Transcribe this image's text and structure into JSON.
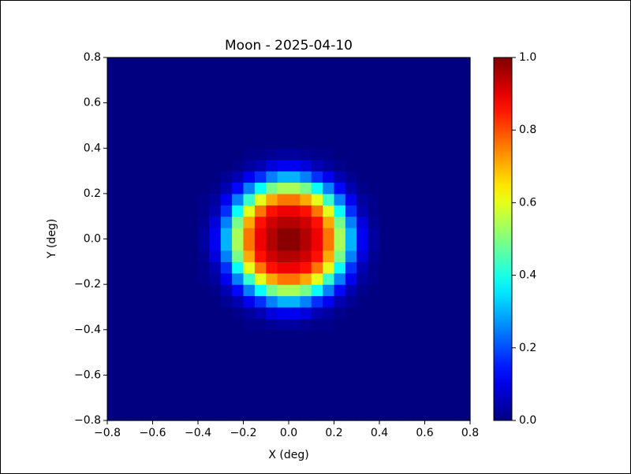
{
  "chart_data": {
    "type": "heatmap",
    "title": "Moon - 2025-04-10",
    "xlabel": "X (deg)",
    "ylabel": "Y (deg)",
    "colormap": "jet",
    "xlim": [
      -0.8,
      0.8
    ],
    "ylim": [
      -0.8,
      0.8
    ],
    "xticks": [
      {
        "value": -0.8,
        "label": "−0.8"
      },
      {
        "value": -0.6,
        "label": "−0.6"
      },
      {
        "value": -0.4,
        "label": "−0.4"
      },
      {
        "value": -0.2,
        "label": "−0.2"
      },
      {
        "value": 0,
        "label": "0.0"
      },
      0.2,
      0.4,
      0.6,
      0.8
    ],
    "yticks": [
      {
        "value": -0.8,
        "label": "−0.8"
      },
      {
        "value": -0.6,
        "label": "−0.6"
      },
      {
        "value": -0.4,
        "label": "−0.4"
      },
      {
        "value": -0.2,
        "label": "−0.2"
      },
      {
        "value": 0,
        "label": "0.0"
      },
      0.2,
      0.4,
      0.6,
      0.8
    ],
    "clim": [
      0,
      1
    ],
    "cticks": [
      {
        "value": 0,
        "label": "0.0"
      },
      0.2,
      0.4,
      0.6,
      0.8,
      {
        "value": 1,
        "label": "1.0"
      }
    ],
    "z": [
      [
        0,
        0,
        0,
        0,
        0,
        0,
        0,
        0,
        0,
        0,
        0,
        0,
        0,
        0,
        0,
        0,
        0,
        0,
        0,
        0,
        0,
        0,
        0,
        0,
        0,
        0,
        0,
        0,
        0,
        0,
        0,
        0
      ],
      [
        0,
        0,
        0,
        0,
        0,
        0,
        0,
        0,
        0,
        0,
        0,
        0,
        0,
        0,
        0,
        0,
        0,
        0,
        0,
        0,
        0,
        0,
        0,
        0,
        0,
        0,
        0,
        0,
        0,
        0,
        0,
        0
      ],
      [
        0,
        0,
        0,
        0,
        0,
        0,
        0,
        0,
        0,
        0,
        0,
        0,
        0,
        0,
        0,
        0,
        0,
        0,
        0,
        0,
        0,
        0,
        0,
        0,
        0,
        0,
        0,
        0,
        0,
        0,
        0,
        0
      ],
      [
        0,
        0,
        0,
        0,
        0,
        0,
        0,
        0,
        0,
        0,
        0,
        0,
        0,
        0,
        0,
        0,
        0,
        0,
        0,
        0,
        0,
        0,
        0,
        0,
        0,
        0,
        0,
        0,
        0,
        0,
        0,
        0
      ],
      [
        0,
        0,
        0,
        0,
        0,
        0,
        0,
        0,
        0,
        0,
        0,
        0,
        0,
        0,
        0,
        0,
        0,
        0,
        0,
        0,
        0,
        0,
        0,
        0,
        0,
        0,
        0,
        0,
        0,
        0,
        0,
        0
      ],
      [
        0,
        0,
        0,
        0,
        0,
        0,
        0,
        0,
        0,
        0,
        0,
        0,
        0,
        0,
        0,
        0,
        0,
        0,
        0,
        0,
        0,
        0,
        0,
        0,
        0,
        0,
        0,
        0,
        0,
        0,
        0,
        0
      ],
      [
        0,
        0,
        0,
        0,
        0,
        0,
        0,
        0,
        0,
        0,
        0,
        0,
        0,
        0,
        0,
        0,
        0,
        0,
        0,
        0,
        0,
        0,
        0,
        0,
        0,
        0,
        0,
        0,
        0,
        0,
        0,
        0
      ],
      [
        0,
        0,
        0,
        0,
        0,
        0,
        0,
        0,
        0,
        0,
        0,
        0,
        0,
        0,
        0,
        0,
        0,
        0,
        0,
        0,
        0,
        0,
        0,
        0,
        0,
        0,
        0,
        0,
        0,
        0,
        0,
        0
      ],
      [
        0,
        0,
        0,
        0,
        0,
        0,
        0,
        0,
        0,
        0,
        0,
        0,
        0.01,
        0.01,
        0.02,
        0.03,
        0.03,
        0.02,
        0.01,
        0.01,
        0,
        0,
        0,
        0,
        0,
        0,
        0,
        0,
        0,
        0,
        0,
        0
      ],
      [
        0,
        0,
        0,
        0,
        0,
        0,
        0,
        0,
        0,
        0,
        0,
        0.01,
        0.03,
        0.05,
        0.09,
        0.11,
        0.11,
        0.09,
        0.05,
        0.03,
        0.01,
        0,
        0,
        0,
        0,
        0,
        0,
        0,
        0,
        0,
        0,
        0
      ],
      [
        0,
        0,
        0,
        0,
        0,
        0,
        0,
        0,
        0,
        0,
        0.02,
        0.05,
        0.11,
        0.17,
        0.25,
        0.3,
        0.3,
        0.25,
        0.17,
        0.11,
        0.05,
        0.02,
        0,
        0,
        0,
        0,
        0,
        0,
        0,
        0,
        0,
        0
      ],
      [
        0,
        0,
        0,
        0,
        0,
        0,
        0,
        0,
        0,
        0.01,
        0.05,
        0.13,
        0.25,
        0.38,
        0.49,
        0.54,
        0.54,
        0.49,
        0.38,
        0.25,
        0.13,
        0.05,
        0.01,
        0,
        0,
        0,
        0,
        0,
        0,
        0,
        0,
        0
      ],
      [
        0,
        0,
        0,
        0,
        0,
        0,
        0,
        0,
        0.01,
        0.03,
        0.11,
        0.25,
        0.43,
        0.6,
        0.71,
        0.76,
        0.76,
        0.71,
        0.6,
        0.43,
        0.25,
        0.11,
        0.03,
        0.01,
        0,
        0,
        0,
        0,
        0,
        0,
        0,
        0
      ],
      [
        0,
        0,
        0,
        0,
        0,
        0,
        0,
        0,
        0.01,
        0.05,
        0.17,
        0.38,
        0.6,
        0.76,
        0.86,
        0.89,
        0.89,
        0.86,
        0.76,
        0.6,
        0.38,
        0.17,
        0.05,
        0.01,
        0,
        0,
        0,
        0,
        0,
        0,
        0,
        0
      ],
      [
        0,
        0,
        0,
        0,
        0,
        0,
        0,
        0,
        0.02,
        0.09,
        0.25,
        0.49,
        0.71,
        0.86,
        0.92,
        0.95,
        0.95,
        0.92,
        0.86,
        0.71,
        0.49,
        0.25,
        0.09,
        0.02,
        0,
        0,
        0,
        0,
        0,
        0,
        0,
        0
      ],
      [
        0,
        0,
        0,
        0,
        0,
        0,
        0,
        0,
        0.03,
        0.11,
        0.3,
        0.54,
        0.76,
        0.89,
        0.95,
        0.99,
        0.99,
        0.95,
        0.89,
        0.76,
        0.54,
        0.3,
        0.11,
        0.03,
        0,
        0,
        0,
        0,
        0,
        0,
        0,
        0
      ],
      [
        0,
        0,
        0,
        0,
        0,
        0,
        0,
        0,
        0.03,
        0.11,
        0.3,
        0.54,
        0.76,
        0.89,
        0.95,
        0.99,
        0.99,
        0.95,
        0.89,
        0.76,
        0.54,
        0.3,
        0.11,
        0.03,
        0,
        0,
        0,
        0,
        0,
        0,
        0,
        0
      ],
      [
        0,
        0,
        0,
        0,
        0,
        0,
        0,
        0,
        0.02,
        0.09,
        0.25,
        0.49,
        0.71,
        0.86,
        0.92,
        0.95,
        0.95,
        0.92,
        0.86,
        0.71,
        0.49,
        0.25,
        0.09,
        0.02,
        0,
        0,
        0,
        0,
        0,
        0,
        0,
        0
      ],
      [
        0,
        0,
        0,
        0,
        0,
        0,
        0,
        0,
        0.01,
        0.05,
        0.17,
        0.38,
        0.6,
        0.76,
        0.86,
        0.89,
        0.89,
        0.86,
        0.76,
        0.6,
        0.38,
        0.17,
        0.05,
        0.01,
        0,
        0,
        0,
        0,
        0,
        0,
        0,
        0
      ],
      [
        0,
        0,
        0,
        0,
        0,
        0,
        0,
        0,
        0.01,
        0.03,
        0.11,
        0.25,
        0.43,
        0.6,
        0.71,
        0.76,
        0.76,
        0.71,
        0.6,
        0.43,
        0.25,
        0.11,
        0.03,
        0.01,
        0,
        0,
        0,
        0,
        0,
        0,
        0,
        0
      ],
      [
        0,
        0,
        0,
        0,
        0,
        0,
        0,
        0,
        0,
        0.01,
        0.05,
        0.13,
        0.25,
        0.38,
        0.49,
        0.54,
        0.54,
        0.49,
        0.38,
        0.25,
        0.13,
        0.05,
        0.01,
        0,
        0,
        0,
        0,
        0,
        0,
        0,
        0,
        0
      ],
      [
        0,
        0,
        0,
        0,
        0,
        0,
        0,
        0,
        0,
        0,
        0.02,
        0.05,
        0.11,
        0.17,
        0.25,
        0.3,
        0.3,
        0.25,
        0.17,
        0.11,
        0.05,
        0.02,
        0,
        0,
        0,
        0,
        0,
        0,
        0,
        0,
        0,
        0
      ],
      [
        0,
        0,
        0,
        0,
        0,
        0,
        0,
        0,
        0,
        0,
        0,
        0.01,
        0.03,
        0.05,
        0.09,
        0.11,
        0.11,
        0.09,
        0.05,
        0.03,
        0.01,
        0,
        0,
        0,
        0,
        0,
        0,
        0,
        0,
        0,
        0,
        0
      ],
      [
        0,
        0,
        0,
        0,
        0,
        0,
        0,
        0,
        0,
        0,
        0,
        0,
        0.01,
        0.01,
        0.02,
        0.03,
        0.03,
        0.02,
        0.01,
        0.01,
        0,
        0,
        0,
        0,
        0,
        0,
        0,
        0,
        0,
        0,
        0,
        0
      ],
      [
        0,
        0,
        0,
        0,
        0,
        0,
        0,
        0,
        0,
        0,
        0,
        0,
        0,
        0,
        0,
        0,
        0,
        0,
        0,
        0,
        0,
        0,
        0,
        0,
        0,
        0,
        0,
        0,
        0,
        0,
        0,
        0
      ],
      [
        0,
        0,
        0,
        0,
        0,
        0,
        0,
        0,
        0,
        0,
        0,
        0,
        0,
        0,
        0,
        0,
        0,
        0,
        0,
        0,
        0,
        0,
        0,
        0,
        0,
        0,
        0,
        0,
        0,
        0,
        0,
        0
      ],
      [
        0,
        0,
        0,
        0,
        0,
        0,
        0,
        0,
        0,
        0,
        0,
        0,
        0,
        0,
        0,
        0,
        0,
        0,
        0,
        0,
        0,
        0,
        0,
        0,
        0,
        0,
        0,
        0,
        0,
        0,
        0,
        0
      ],
      [
        0,
        0,
        0,
        0,
        0,
        0,
        0,
        0,
        0,
        0,
        0,
        0,
        0,
        0,
        0,
        0,
        0,
        0,
        0,
        0,
        0,
        0,
        0,
        0,
        0,
        0,
        0,
        0,
        0,
        0,
        0,
        0
      ],
      [
        0,
        0,
        0,
        0,
        0,
        0,
        0,
        0,
        0,
        0,
        0,
        0,
        0,
        0,
        0,
        0,
        0,
        0,
        0,
        0,
        0,
        0,
        0,
        0,
        0,
        0,
        0,
        0,
        0,
        0,
        0,
        0
      ],
      [
        0,
        0,
        0,
        0,
        0,
        0,
        0,
        0,
        0,
        0,
        0,
        0,
        0,
        0,
        0,
        0,
        0,
        0,
        0,
        0,
        0,
        0,
        0,
        0,
        0,
        0,
        0,
        0,
        0,
        0,
        0,
        0
      ],
      [
        0,
        0,
        0,
        0,
        0,
        0,
        0,
        0,
        0,
        0,
        0,
        0,
        0,
        0,
        0,
        0,
        0,
        0,
        0,
        0,
        0,
        0,
        0,
        0,
        0,
        0,
        0,
        0,
        0,
        0,
        0,
        0
      ],
      [
        0,
        0,
        0,
        0,
        0,
        0,
        0,
        0,
        0,
        0,
        0,
        0,
        0,
        0,
        0,
        0,
        0,
        0,
        0,
        0,
        0,
        0,
        0,
        0,
        0,
        0,
        0,
        0,
        0,
        0,
        0,
        0
      ]
    ]
  }
}
